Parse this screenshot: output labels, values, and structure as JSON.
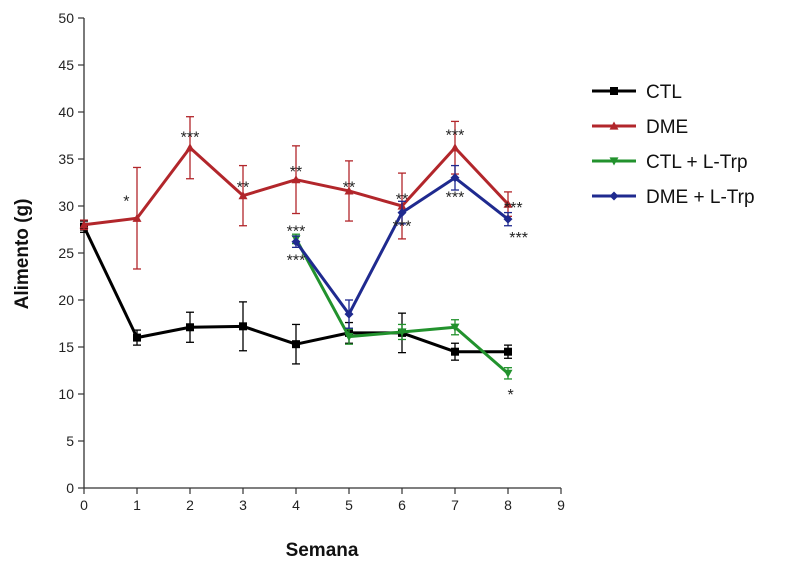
{
  "chart_data": {
    "type": "line",
    "xlabel": "Semana",
    "ylabel": "Alimento (g)",
    "xlim": [
      0,
      9
    ],
    "ylim": [
      0,
      50
    ],
    "x_ticks": [
      0,
      1,
      2,
      3,
      4,
      5,
      6,
      7,
      8,
      9
    ],
    "y_ticks": [
      0,
      5,
      10,
      15,
      20,
      25,
      30,
      35,
      40,
      45,
      50
    ],
    "grid": false,
    "legend_position": "right",
    "series": [
      {
        "name": "CTL",
        "color": "#000000",
        "marker": "square",
        "x": [
          0,
          1,
          2,
          3,
          4,
          5,
          6,
          7,
          8
        ],
        "y": [
          27.8,
          16.0,
          17.1,
          17.2,
          15.3,
          16.5,
          16.5,
          14.5,
          14.5
        ],
        "err": [
          0.6,
          0.8,
          1.6,
          2.6,
          2.1,
          1.1,
          2.1,
          0.9,
          0.7
        ]
      },
      {
        "name": "DME",
        "color": "#b2262b",
        "marker": "triangle-up",
        "x": [
          0,
          1,
          2,
          3,
          4,
          5,
          6,
          7,
          8
        ],
        "y": [
          28.0,
          28.7,
          36.2,
          31.1,
          32.8,
          31.6,
          30.0,
          36.2,
          30.2
        ],
        "err": [
          0.5,
          5.4,
          3.3,
          3.2,
          3.6,
          3.2,
          3.5,
          2.8,
          1.3
        ]
      },
      {
        "name": "CTL + L-Trp",
        "color": "#22922d",
        "marker": "triangle-down",
        "x": [
          4,
          5,
          6,
          7,
          8
        ],
        "y": [
          26.5,
          16.1,
          16.6,
          17.1,
          12.2
        ],
        "err": [
          0.5,
          0.8,
          0.8,
          0.8,
          0.6
        ]
      },
      {
        "name": "DME + L-Trp",
        "color": "#1f2a8f",
        "marker": "diamond",
        "x": [
          4,
          5,
          6,
          7,
          8
        ],
        "y": [
          26.2,
          18.5,
          29.3,
          33.0,
          28.6
        ],
        "err": [
          0.6,
          1.5,
          1.2,
          1.3,
          0.7
        ]
      }
    ],
    "annotations": [
      {
        "text": "*",
        "x": 0.8,
        "y": 30.6
      },
      {
        "text": "***",
        "x": 2.0,
        "y": 37.4
      },
      {
        "text": "**",
        "x": 3.0,
        "y": 32.1
      },
      {
        "text": "**",
        "x": 4.0,
        "y": 33.7
      },
      {
        "text": "***",
        "x": 4.0,
        "y": 27.4
      },
      {
        "text": "***",
        "x": 4.0,
        "y": 24.3
      },
      {
        "text": "**",
        "x": 5.0,
        "y": 32.1
      },
      {
        "text": "**",
        "x": 6.0,
        "y": 30.8
      },
      {
        "text": "***",
        "x": 6.0,
        "y": 27.9
      },
      {
        "text": "***",
        "x": 7.0,
        "y": 37.6
      },
      {
        "text": "***",
        "x": 7.0,
        "y": 31.0
      },
      {
        "text": "***",
        "x": 8.1,
        "y": 29.9
      },
      {
        "text": "***",
        "x": 8.2,
        "y": 26.7
      },
      {
        "text": "*",
        "x": 8.05,
        "y": 10.0
      }
    ]
  }
}
